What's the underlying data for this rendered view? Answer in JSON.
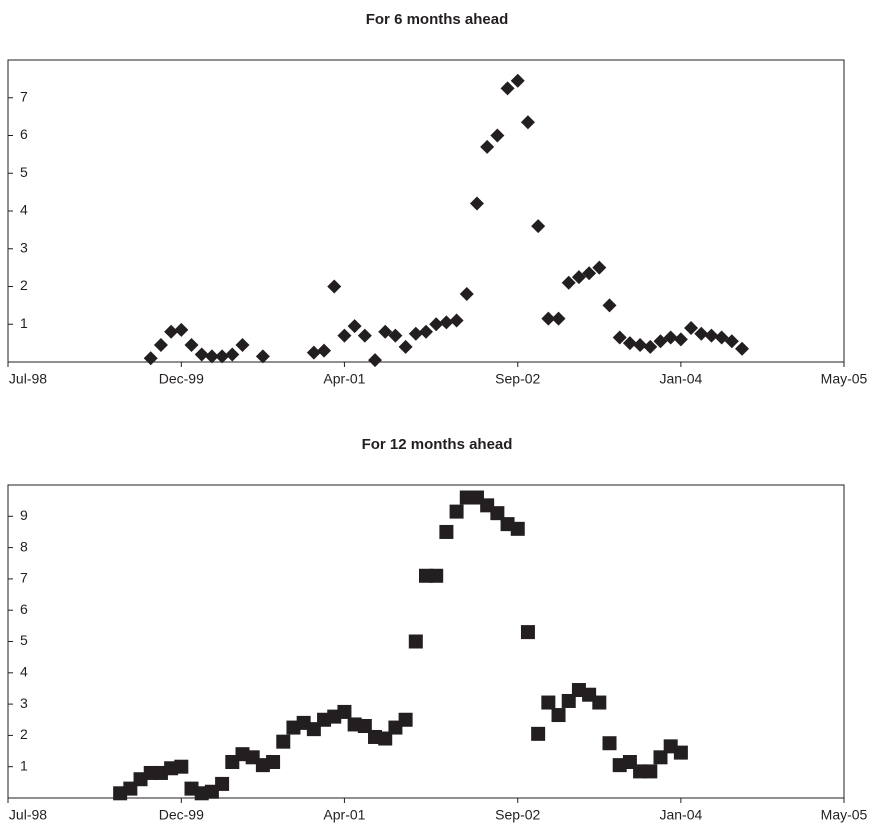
{
  "chart_data": [
    {
      "type": "scatter",
      "title": "For 6 months ahead",
      "marker": "diamond",
      "color": "#231f20",
      "xlim": [
        "1998-07",
        "2005-05"
      ],
      "xticks": [
        {
          "value": "1998-07",
          "label": "Jul-98"
        },
        {
          "value": "1999-12",
          "label": "Dec-99"
        },
        {
          "value": "2001-04",
          "label": "Apr-01"
        },
        {
          "value": "2002-09",
          "label": "Sep-02"
        },
        {
          "value": "2004-01",
          "label": "Jan-04"
        },
        {
          "value": "2005-05",
          "label": "May-05"
        }
      ],
      "ylim": [
        0,
        8
      ],
      "yticks": [
        1,
        2,
        3,
        4,
        5,
        6,
        7
      ],
      "x": [
        "1999-09",
        "1999-10",
        "1999-11",
        "1999-12",
        "2000-01",
        "2000-02",
        "2000-03",
        "2000-04",
        "2000-05",
        "2000-06",
        "2000-08",
        "2001-01",
        "2001-02",
        "2001-03",
        "2001-04",
        "2001-05",
        "2001-06",
        "2001-07",
        "2001-08",
        "2001-09",
        "2001-10",
        "2001-11",
        "2001-12",
        "2002-01",
        "2002-02",
        "2002-03",
        "2002-04",
        "2002-05",
        "2002-06",
        "2002-07",
        "2002-08",
        "2002-09",
        "2002-10",
        "2002-11",
        "2002-12",
        "2003-01",
        "2003-02",
        "2003-03",
        "2003-04",
        "2003-05",
        "2003-06",
        "2003-07",
        "2003-08",
        "2003-09",
        "2003-10",
        "2003-11",
        "2003-12",
        "2004-01",
        "2004-02",
        "2004-03",
        "2004-04",
        "2004-05",
        "2004-06",
        "2004-07"
      ],
      "values": [
        0.1,
        0.45,
        0.8,
        0.85,
        0.45,
        0.2,
        0.15,
        0.15,
        0.2,
        0.45,
        0.15,
        0.25,
        0.3,
        2.0,
        0.7,
        0.95,
        0.7,
        0.05,
        0.8,
        0.7,
        0.4,
        0.75,
        0.8,
        1.0,
        1.05,
        1.1,
        1.8,
        4.2,
        5.7,
        6.0,
        7.25,
        7.45,
        6.35,
        3.6,
        1.15,
        1.15,
        2.1,
        2.25,
        2.35,
        2.5,
        1.5,
        0.65,
        0.5,
        0.45,
        0.4,
        0.55,
        0.65,
        0.6,
        0.9,
        0.75,
        0.7,
        0.65,
        0.55,
        0.35
      ]
    },
    {
      "type": "scatter",
      "title": "For 12 months ahead",
      "marker": "square",
      "color": "#231f20",
      "xlim": [
        "1998-07",
        "2005-05"
      ],
      "xticks": [
        {
          "value": "1998-07",
          "label": "Jul-98"
        },
        {
          "value": "1999-12",
          "label": "Dec-99"
        },
        {
          "value": "2001-04",
          "label": "Apr-01"
        },
        {
          "value": "2002-09",
          "label": "Sep-02"
        },
        {
          "value": "2004-01",
          "label": "Jan-04"
        },
        {
          "value": "2005-05",
          "label": "May-05"
        }
      ],
      "ylim": [
        0,
        10
      ],
      "yticks": [
        1,
        2,
        3,
        4,
        5,
        6,
        7,
        8,
        9
      ],
      "x": [
        "1999-06",
        "1999-07",
        "1999-08",
        "1999-09",
        "1999-10",
        "1999-11",
        "1999-12",
        "2000-01",
        "2000-02",
        "2000-03",
        "2000-04",
        "2000-05",
        "2000-06",
        "2000-07",
        "2000-08",
        "2000-09",
        "2000-10",
        "2000-11",
        "2000-12",
        "2001-01",
        "2001-02",
        "2001-03",
        "2001-04",
        "2001-05",
        "2001-06",
        "2001-07",
        "2001-08",
        "2001-09",
        "2001-10",
        "2001-11",
        "2001-12",
        "2002-01",
        "2002-02",
        "2002-03",
        "2002-04",
        "2002-05",
        "2002-06",
        "2002-07",
        "2002-08",
        "2002-09",
        "2002-10",
        "2002-11",
        "2002-12",
        "2003-01",
        "2003-02",
        "2003-03",
        "2003-04",
        "2003-05",
        "2003-06",
        "2003-07",
        "2003-08",
        "2003-09",
        "2003-10",
        "2003-11",
        "2003-12",
        "2004-01"
      ],
      "values": [
        0.15,
        0.3,
        0.6,
        0.8,
        0.8,
        0.95,
        1.0,
        0.3,
        0.15,
        0.2,
        0.45,
        1.15,
        1.4,
        1.3,
        1.05,
        1.15,
        1.8,
        2.25,
        2.4,
        2.2,
        2.5,
        2.6,
        2.75,
        2.35,
        2.3,
        1.95,
        1.9,
        2.25,
        2.5,
        5.0,
        7.1,
        7.1,
        8.5,
        9.15,
        9.6,
        9.6,
        9.35,
        9.1,
        8.75,
        8.6,
        5.3,
        2.05,
        3.05,
        2.65,
        3.1,
        3.45,
        3.3,
        3.05,
        1.75,
        1.05,
        1.15,
        0.85,
        0.85,
        1.3,
        1.65,
        1.45
      ]
    }
  ]
}
